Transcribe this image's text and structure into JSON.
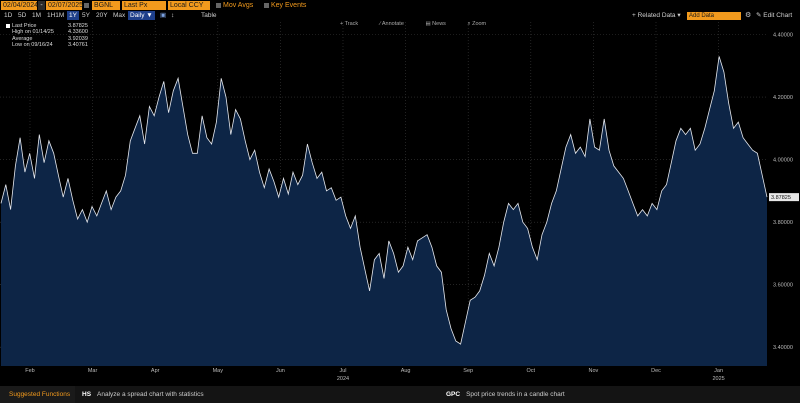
{
  "security_bar": {
    "start_date": "02/04/2024",
    "end_date": "02/07/2025",
    "ticker": "BGNL",
    "field": "Last Px",
    "currency": "Local CCY",
    "mov_avgs_label": "Mov Avgs",
    "key_events_label": "Key Events"
  },
  "toolbar": {
    "periods": [
      "1D",
      "5D",
      "1M",
      "1H1M",
      "1Y",
      "5Y",
      "20Y",
      "Max"
    ],
    "selected_period": "1Y",
    "frequency": "Daily ▼",
    "table_label": "Table",
    "related_data_label": "Related Data",
    "add_data_placeholder": "Add Data",
    "edit_chart_label": "Edit Chart"
  },
  "chart_tools": [
    "Track",
    "Annotate",
    "News",
    "Zoom"
  ],
  "legend": [
    {
      "label": "Last Price",
      "value": "3.87825"
    },
    {
      "label": "High on 01/14/25",
      "value": "4.33600"
    },
    {
      "label": "Average",
      "value": "3.92039"
    },
    {
      "label": "Low on 09/16/24",
      "value": "3.40761"
    }
  ],
  "colors": {
    "accent": "#f29a1d",
    "area_fill": "#0d2546",
    "line": "#e6e9ef",
    "last_price_tag": "#f29a1d"
  },
  "chart_data": {
    "type": "area",
    "y_ticks": [
      "3.40000",
      "3.60000",
      "3.80000",
      "4.00000",
      "4.20000",
      "4.40000"
    ],
    "ylim": [
      3.34,
      4.44
    ],
    "x_ticks": [
      "Feb",
      "Mar",
      "Apr",
      "May",
      "Jun",
      "Jul",
      "Aug",
      "Sep",
      "Oct",
      "Nov",
      "Dec",
      "Jan"
    ],
    "x_year_labels": [
      "2024",
      "2025"
    ],
    "last_price_label": "3.87825",
    "grid": true,
    "series": [
      {
        "values": [
          3.86,
          3.92,
          3.84,
          3.98,
          4.07,
          3.96,
          4.02,
          3.94,
          4.08,
          3.99,
          4.06,
          4.02,
          3.95,
          3.88,
          3.94,
          3.87,
          3.81,
          3.84,
          3.8,
          3.85,
          3.82,
          3.86,
          3.9,
          3.84,
          3.88,
          3.9,
          3.95,
          4.06,
          4.1,
          4.14,
          4.05,
          4.17,
          4.14,
          4.2,
          4.25,
          4.15,
          4.22,
          4.26,
          4.17,
          4.08,
          4.02,
          4.02,
          4.14,
          4.07,
          4.05,
          4.12,
          4.26,
          4.2,
          4.08,
          4.16,
          4.13,
          4.06,
          4.0,
          4.03,
          3.96,
          3.91,
          3.97,
          3.93,
          3.88,
          3.94,
          3.89,
          3.96,
          3.92,
          3.95,
          4.05,
          3.99,
          3.94,
          3.96,
          3.9,
          3.91,
          3.87,
          3.88,
          3.82,
          3.78,
          3.82,
          3.72,
          3.65,
          3.58,
          3.68,
          3.7,
          3.62,
          3.74,
          3.7,
          3.64,
          3.66,
          3.72,
          3.68,
          3.74,
          3.75,
          3.76,
          3.72,
          3.66,
          3.64,
          3.52,
          3.46,
          3.42,
          3.41,
          3.48,
          3.55,
          3.56,
          3.58,
          3.63,
          3.7,
          3.66,
          3.72,
          3.8,
          3.86,
          3.84,
          3.86,
          3.8,
          3.78,
          3.72,
          3.68,
          3.76,
          3.8,
          3.86,
          3.9,
          3.97,
          4.04,
          4.08,
          4.02,
          4.04,
          4.01,
          4.13,
          4.04,
          4.03,
          4.13,
          4.03,
          3.98,
          3.96,
          3.94,
          3.9,
          3.86,
          3.82,
          3.84,
          3.82,
          3.86,
          3.84,
          3.9,
          3.92,
          3.99,
          4.06,
          4.1,
          4.08,
          4.1,
          4.03,
          4.05,
          4.1,
          4.16,
          4.22,
          4.33,
          4.28,
          4.18,
          4.1,
          4.12,
          4.07,
          4.05,
          4.03,
          4.02,
          3.95,
          3.88
        ]
      }
    ]
  },
  "footer": {
    "suggested_label": "Suggested Functions",
    "items": [
      {
        "code": "HS",
        "desc": "Analyze a spread chart with statistics"
      },
      {
        "code": "GPC",
        "desc": "Spot price trends in a candle chart"
      }
    ]
  }
}
